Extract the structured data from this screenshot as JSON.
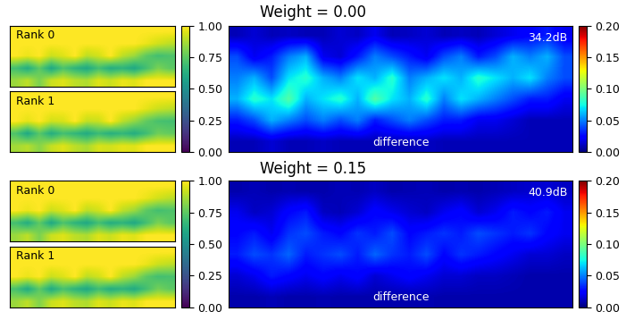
{
  "chart_data": [
    {
      "type": "heatmap",
      "title": "Weight = 0.00",
      "fields": [
        {
          "label": "Rank 0",
          "cells": [
            [
              1,
              1,
              1,
              1,
              1,
              1,
              1,
              1,
              1,
              1,
              1,
              1,
              1,
              1
            ],
            [
              1,
              1,
              1,
              1,
              1,
              1,
              1,
              1,
              1,
              1,
              1,
              0.97,
              0.93,
              0.9
            ],
            [
              1,
              0.97,
              1,
              0.92,
              0.95,
              1,
              0.9,
              0.93,
              1,
              0.9,
              0.85,
              0.75,
              0.7,
              0.72
            ],
            [
              0.7,
              0.62,
              0.75,
              0.6,
              0.72,
              0.65,
              0.6,
              0.7,
              0.62,
              0.65,
              0.6,
              0.7,
              0.8,
              0.75
            ],
            [
              0.85,
              0.9,
              0.8,
              0.92,
              0.95,
              0.9,
              0.88,
              0.95,
              0.92,
              0.97,
              0.95,
              1,
              1,
              1
            ]
          ]
        },
        {
          "label": "Rank 1",
          "cells": [
            [
              1,
              1,
              1,
              1,
              1,
              1,
              1,
              1,
              1,
              1,
              1,
              1,
              1,
              1
            ],
            [
              1,
              1,
              1,
              1,
              1,
              1,
              1,
              1,
              1,
              1,
              1,
              0.96,
              0.92,
              0.9
            ],
            [
              1,
              0.96,
              1,
              0.93,
              0.94,
              1,
              0.91,
              0.92,
              1,
              0.9,
              0.84,
              0.76,
              0.71,
              0.7
            ],
            [
              0.72,
              0.6,
              0.74,
              0.62,
              0.7,
              0.66,
              0.61,
              0.68,
              0.63,
              0.66,
              0.62,
              0.69,
              0.78,
              0.76
            ],
            [
              0.86,
              0.89,
              0.82,
              0.91,
              0.95,
              0.9,
              0.87,
              0.94,
              0.93,
              0.96,
              0.95,
              1,
              1,
              1
            ]
          ]
        }
      ],
      "field_colorbar": {
        "range": [
          0,
          1
        ],
        "ticks": [
          {
            "value": 0,
            "label": "0.00"
          },
          {
            "value": 0.25,
            "label": "0.25"
          },
          {
            "value": 0.5,
            "label": "0.50"
          },
          {
            "value": 0.75,
            "label": "0.75"
          },
          {
            "value": 1,
            "label": "1.00"
          }
        ]
      },
      "difference": {
        "label": "difference",
        "score": "34.2dB",
        "cells": [
          [
            0.01,
            0.015,
            0.01,
            0.012,
            0.01,
            0.01,
            0.015,
            0.012,
            0.02,
            0.01,
            0.012,
            0.015,
            0.01,
            0.012,
            0.01,
            0.015,
            0.02,
            0.025,
            0.03,
            0.02
          ],
          [
            0.04,
            0.02,
            0.03,
            0.05,
            0.06,
            0.02,
            0.015,
            0.03,
            0.05,
            0.04,
            0.03,
            0.02,
            0.04,
            0.05,
            0.03,
            0.04,
            0.06,
            0.05,
            0.06,
            0.04
          ],
          [
            0.05,
            0.06,
            0.04,
            0.07,
            0.08,
            0.06,
            0.05,
            0.07,
            0.06,
            0.08,
            0.05,
            0.06,
            0.07,
            0.06,
            0.08,
            0.07,
            0.06,
            0.07,
            0.05,
            0.04
          ],
          [
            0.06,
            0.08,
            0.07,
            0.09,
            0.06,
            0.07,
            0.08,
            0.06,
            0.09,
            0.07,
            0.06,
            0.08,
            0.05,
            0.07,
            0.06,
            0.05,
            0.04,
            0.03,
            0.03,
            0.02
          ],
          [
            0.03,
            0.04,
            0.06,
            0.05,
            0.04,
            0.05,
            0.04,
            0.05,
            0.03,
            0.04,
            0.05,
            0.04,
            0.03,
            0.03,
            0.02,
            0.02,
            0.015,
            0.01,
            0.01,
            0.01
          ],
          [
            0.01,
            0.01,
            0.015,
            0.01,
            0.01,
            0.012,
            0.01,
            0.01,
            0.01,
            0.01,
            0.01,
            0.012,
            0.01,
            0.01,
            0.01,
            0.01,
            0.01,
            0.01,
            0.01,
            0.01
          ]
        ]
      },
      "difference_colorbar": {
        "range": [
          0,
          0.2
        ],
        "ticks": [
          {
            "value": 0,
            "label": "0.00"
          },
          {
            "value": 0.05,
            "label": "0.05"
          },
          {
            "value": 0.1,
            "label": "0.10"
          },
          {
            "value": 0.15,
            "label": "0.15"
          },
          {
            "value": 0.2,
            "label": "0.20"
          }
        ]
      }
    },
    {
      "type": "heatmap",
      "title": "Weight = 0.15",
      "fields": [
        {
          "label": "Rank 0",
          "cells": [
            [
              1,
              1,
              1,
              1,
              1,
              1,
              1,
              1,
              1,
              1,
              1,
              1,
              1,
              1
            ],
            [
              1,
              1,
              1,
              1,
              1,
              1,
              1,
              1,
              1,
              1,
              1,
              0.97,
              0.93,
              0.9
            ],
            [
              1,
              0.97,
              1,
              0.92,
              0.95,
              1,
              0.9,
              0.93,
              1,
              0.9,
              0.85,
              0.75,
              0.7,
              0.72
            ],
            [
              0.7,
              0.62,
              0.75,
              0.6,
              0.72,
              0.65,
              0.6,
              0.7,
              0.62,
              0.65,
              0.6,
              0.7,
              0.8,
              0.75
            ],
            [
              0.85,
              0.9,
              0.8,
              0.92,
              0.95,
              0.9,
              0.88,
              0.95,
              0.92,
              0.97,
              0.95,
              1,
              1,
              1
            ]
          ]
        },
        {
          "label": "Rank 1",
          "cells": [
            [
              1,
              1,
              1,
              1,
              1,
              1,
              1,
              1,
              1,
              1,
              1,
              1,
              1,
              1
            ],
            [
              1,
              1,
              1,
              1,
              1,
              1,
              1,
              1,
              1,
              1,
              1,
              0.97,
              0.92,
              0.9
            ],
            [
              1,
              0.97,
              1,
              0.92,
              0.95,
              1,
              0.9,
              0.93,
              1,
              0.9,
              0.85,
              0.75,
              0.7,
              0.71
            ],
            [
              0.71,
              0.61,
              0.75,
              0.61,
              0.71,
              0.65,
              0.6,
              0.69,
              0.62,
              0.65,
              0.61,
              0.7,
              0.79,
              0.75
            ],
            [
              0.85,
              0.9,
              0.81,
              0.92,
              0.95,
              0.9,
              0.88,
              0.95,
              0.92,
              0.97,
              0.95,
              1,
              1,
              1
            ]
          ]
        }
      ],
      "field_colorbar": {
        "range": [
          0,
          1
        ],
        "ticks": [
          {
            "value": 0,
            "label": "0.00"
          },
          {
            "value": 0.25,
            "label": "0.25"
          },
          {
            "value": 0.5,
            "label": "0.50"
          },
          {
            "value": 0.75,
            "label": "0.75"
          },
          {
            "value": 1,
            "label": "1.00"
          }
        ]
      },
      "difference": {
        "label": "difference",
        "score": "40.9dB",
        "cells": [
          [
            0.008,
            0.01,
            0.008,
            0.009,
            0.008,
            0.008,
            0.01,
            0.009,
            0.012,
            0.008,
            0.009,
            0.01,
            0.008,
            0.009,
            0.008,
            0.01,
            0.012,
            0.014,
            0.015,
            0.012
          ],
          [
            0.02,
            0.012,
            0.015,
            0.025,
            0.03,
            0.012,
            0.01,
            0.015,
            0.025,
            0.02,
            0.015,
            0.012,
            0.02,
            0.025,
            0.015,
            0.02,
            0.03,
            0.025,
            0.03,
            0.02
          ],
          [
            0.025,
            0.03,
            0.02,
            0.035,
            0.04,
            0.03,
            0.025,
            0.035,
            0.03,
            0.04,
            0.025,
            0.03,
            0.035,
            0.03,
            0.04,
            0.035,
            0.03,
            0.035,
            0.025,
            0.02
          ],
          [
            0.03,
            0.04,
            0.035,
            0.045,
            0.03,
            0.035,
            0.04,
            0.03,
            0.045,
            0.035,
            0.03,
            0.04,
            0.025,
            0.035,
            0.03,
            0.025,
            0.02,
            0.015,
            0.015,
            0.012
          ],
          [
            0.015,
            0.02,
            0.03,
            0.025,
            0.02,
            0.025,
            0.02,
            0.025,
            0.015,
            0.02,
            0.025,
            0.02,
            0.015,
            0.015,
            0.012,
            0.012,
            0.01,
            0.008,
            0.008,
            0.008
          ],
          [
            0.008,
            0.008,
            0.01,
            0.008,
            0.008,
            0.009,
            0.008,
            0.008,
            0.008,
            0.008,
            0.008,
            0.009,
            0.008,
            0.008,
            0.008,
            0.008,
            0.008,
            0.008,
            0.008,
            0.008
          ]
        ]
      },
      "difference_colorbar": {
        "range": [
          0,
          0.2
        ],
        "ticks": [
          {
            "value": 0,
            "label": "0.00"
          },
          {
            "value": 0.05,
            "label": "0.05"
          },
          {
            "value": 0.1,
            "label": "0.10"
          },
          {
            "value": 0.15,
            "label": "0.15"
          },
          {
            "value": 0.2,
            "label": "0.20"
          }
        ]
      }
    }
  ]
}
